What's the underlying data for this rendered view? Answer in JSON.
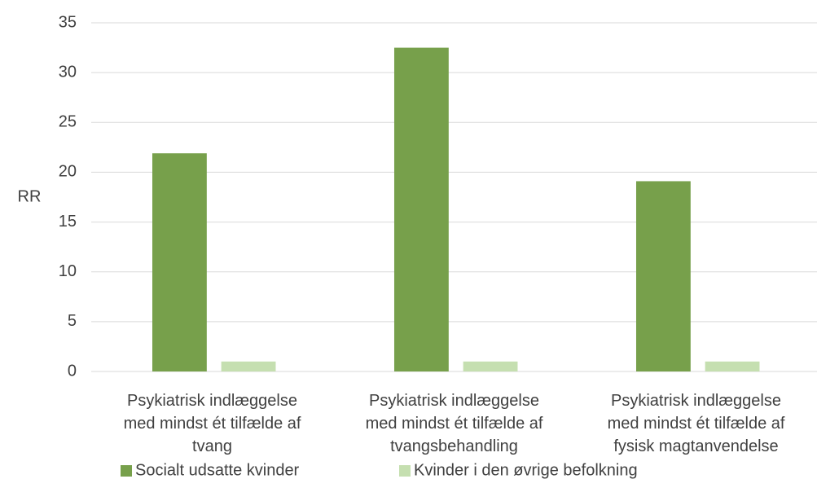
{
  "chart_data": {
    "type": "bar",
    "y_label": "RR",
    "categories": [
      "Psykiatrisk indlæggelse\nmed mindst ét tilfælde af\ntvang",
      "Psykiatrisk indlæggelse\nmed mindst ét tilfælde af\ntvangsbehandling",
      "Psykiatrisk indlæggelse\nmed mindst ét tilfælde af\nfysisk magtanvendelse"
    ],
    "series": [
      {
        "name": "Socialt udsatte kvinder",
        "color": "#77a04b",
        "values": [
          21.9,
          32.5,
          19.1
        ]
      },
      {
        "name": "Kvinder i den øvrige befolkning",
        "color": "#c5dfb0",
        "values": [
          1,
          1,
          1
        ]
      }
    ],
    "ylim": [
      0,
      35
    ],
    "yticks": [
      0,
      5,
      10,
      15,
      20,
      25,
      30,
      35
    ],
    "grid": true,
    "legend": "bottom"
  }
}
